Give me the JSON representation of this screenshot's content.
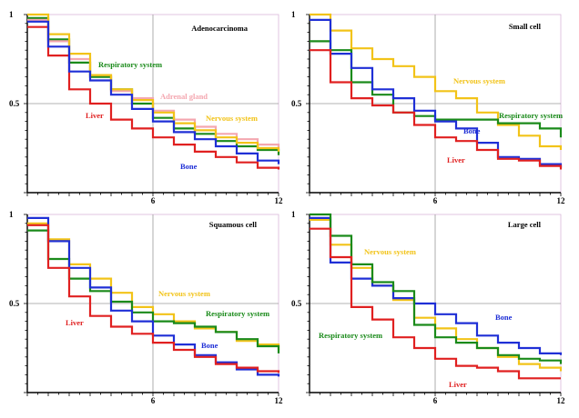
{
  "chart_data": [
    {
      "type": "line",
      "title": "Adenocarcinoma",
      "xlim": [
        0,
        12
      ],
      "ylim": [
        0,
        1
      ],
      "x_ticks": [
        6,
        12
      ],
      "y_ticks": [
        {
          "value": 1,
          "label": "1"
        },
        {
          "value": 0.5,
          "label": "0.5"
        }
      ],
      "series": [
        {
          "name": "Respiratory system",
          "color": "#1a8a1a",
          "x": [
            0,
            1,
            2,
            3,
            4,
            5,
            6,
            7,
            8,
            9,
            10,
            11,
            12
          ],
          "y": [
            0.98,
            0.86,
            0.73,
            0.65,
            0.58,
            0.5,
            0.42,
            0.36,
            0.33,
            0.29,
            0.26,
            0.24,
            0.21
          ]
        },
        {
          "name": "Adrenal gland",
          "color": "#f4a7b0",
          "x": [
            0,
            1,
            2,
            3,
            4,
            5,
            6,
            7,
            8,
            9,
            10,
            11,
            12
          ],
          "y": [
            0.97,
            0.85,
            0.75,
            0.66,
            0.57,
            0.53,
            0.46,
            0.41,
            0.37,
            0.33,
            0.3,
            0.27,
            0.24
          ]
        },
        {
          "name": "Nervous system",
          "color": "#f2c318",
          "x": [
            0,
            1,
            2,
            3,
            4,
            5,
            6,
            7,
            8,
            9,
            10,
            11,
            12
          ],
          "y": [
            1.0,
            0.89,
            0.78,
            0.66,
            0.58,
            0.52,
            0.45,
            0.39,
            0.35,
            0.31,
            0.28,
            0.25,
            0.23
          ]
        },
        {
          "name": "Liver",
          "color": "#e02020",
          "x": [
            0,
            1,
            2,
            3,
            4,
            5,
            6,
            7,
            8,
            9,
            10,
            11,
            12
          ],
          "y": [
            0.93,
            0.77,
            0.58,
            0.5,
            0.41,
            0.36,
            0.31,
            0.27,
            0.23,
            0.2,
            0.17,
            0.14,
            0.13
          ]
        },
        {
          "name": "Bone",
          "color": "#1f2fd6",
          "x": [
            0,
            1,
            2,
            3,
            4,
            5,
            6,
            7,
            8,
            9,
            10,
            11,
            12
          ],
          "y": [
            0.96,
            0.82,
            0.68,
            0.63,
            0.55,
            0.47,
            0.4,
            0.34,
            0.3,
            0.26,
            0.22,
            0.18,
            0.16
          ]
        }
      ]
    },
    {
      "type": "line",
      "title": "Small cell",
      "xlim": [
        0,
        12
      ],
      "ylim": [
        0,
        1
      ],
      "x_ticks": [
        6,
        12
      ],
      "y_ticks": [
        {
          "value": 1,
          "label": "1"
        },
        {
          "value": 0.5,
          "label": "0.5"
        }
      ],
      "series": [
        {
          "name": "Nervous system",
          "color": "#f2c318",
          "x": [
            0,
            1,
            2,
            3,
            4,
            5,
            6,
            7,
            8,
            9,
            10,
            11,
            12
          ],
          "y": [
            1.0,
            0.91,
            0.81,
            0.75,
            0.71,
            0.65,
            0.57,
            0.53,
            0.45,
            0.38,
            0.32,
            0.26,
            0.24
          ]
        },
        {
          "name": "Respiratory system",
          "color": "#1a8a1a",
          "x": [
            0,
            1,
            2,
            3,
            4,
            5,
            6,
            7,
            8,
            9,
            10,
            11,
            12
          ],
          "y": [
            0.85,
            0.8,
            0.62,
            0.55,
            0.45,
            0.43,
            0.41,
            0.41,
            0.41,
            0.39,
            0.39,
            0.36,
            0.31
          ]
        },
        {
          "name": "Bone",
          "color": "#1f2fd6",
          "x": [
            0,
            1,
            2,
            3,
            4,
            5,
            6,
            7,
            8,
            9,
            10,
            11,
            12
          ],
          "y": [
            0.97,
            0.78,
            0.7,
            0.58,
            0.53,
            0.46,
            0.4,
            0.36,
            0.28,
            0.2,
            0.19,
            0.16,
            0.14
          ]
        },
        {
          "name": "Liver",
          "color": "#e02020",
          "x": [
            0,
            1,
            2,
            3,
            4,
            5,
            6,
            7,
            8,
            9,
            10,
            11,
            12
          ],
          "y": [
            0.8,
            0.62,
            0.53,
            0.49,
            0.45,
            0.38,
            0.31,
            0.29,
            0.24,
            0.19,
            0.18,
            0.15,
            0.13
          ]
        }
      ]
    },
    {
      "type": "line",
      "title": "Squamous cell",
      "xlim": [
        0,
        12
      ],
      "ylim": [
        0,
        1
      ],
      "x_ticks": [
        6,
        12
      ],
      "y_ticks": [
        {
          "value": 1,
          "label": "1"
        },
        {
          "value": 0.5,
          "label": "0.5"
        }
      ],
      "series": [
        {
          "name": "Nervous system",
          "color": "#f2c318",
          "x": [
            0,
            1,
            2,
            3,
            4,
            5,
            6,
            7,
            8,
            9,
            10,
            11,
            12
          ],
          "y": [
            0.95,
            0.86,
            0.72,
            0.64,
            0.56,
            0.48,
            0.44,
            0.4,
            0.36,
            0.34,
            0.29,
            0.27,
            0.24
          ]
        },
        {
          "name": "Respiratory system",
          "color": "#1a8a1a",
          "x": [
            0,
            1,
            2,
            3,
            4,
            5,
            6,
            7,
            8,
            9,
            10,
            11,
            12
          ],
          "y": [
            0.91,
            0.75,
            0.64,
            0.57,
            0.51,
            0.45,
            0.4,
            0.39,
            0.37,
            0.34,
            0.3,
            0.26,
            0.22
          ]
        },
        {
          "name": "Bone",
          "color": "#1f2fd6",
          "x": [
            0,
            1,
            2,
            3,
            4,
            5,
            6,
            7,
            8,
            9,
            10,
            11,
            12
          ],
          "y": [
            0.98,
            0.85,
            0.7,
            0.59,
            0.46,
            0.4,
            0.32,
            0.27,
            0.21,
            0.17,
            0.13,
            0.1,
            0.09
          ]
        },
        {
          "name": "Liver",
          "color": "#e02020",
          "x": [
            0,
            1,
            2,
            3,
            4,
            5,
            6,
            7,
            8,
            9,
            10,
            11,
            12
          ],
          "y": [
            0.94,
            0.7,
            0.54,
            0.43,
            0.37,
            0.33,
            0.28,
            0.24,
            0.2,
            0.16,
            0.14,
            0.12,
            0.11
          ]
        }
      ]
    },
    {
      "type": "line",
      "title": "Large cell",
      "xlim": [
        0,
        12
      ],
      "ylim": [
        0,
        1
      ],
      "x_ticks": [
        6,
        12
      ],
      "y_ticks": [
        {
          "value": 1,
          "label": "1"
        },
        {
          "value": 0.5,
          "label": "0.5"
        }
      ],
      "series": [
        {
          "name": "Nervous system",
          "color": "#f2c318",
          "x": [
            0,
            1,
            2,
            3,
            4,
            5,
            6,
            7,
            8,
            9,
            10,
            11,
            12
          ],
          "y": [
            0.97,
            0.83,
            0.7,
            0.6,
            0.52,
            0.42,
            0.36,
            0.3,
            0.25,
            0.2,
            0.16,
            0.14,
            0.12
          ]
        },
        {
          "name": "Bone",
          "color": "#1f2fd6",
          "x": [
            0,
            1,
            2,
            3,
            4,
            5,
            6,
            7,
            8,
            9,
            10,
            11,
            12
          ],
          "y": [
            0.98,
            0.73,
            0.64,
            0.6,
            0.53,
            0.5,
            0.44,
            0.39,
            0.32,
            0.28,
            0.25,
            0.22,
            0.21
          ]
        },
        {
          "name": "Respiratory system",
          "color": "#1a8a1a",
          "x": [
            0,
            1,
            2,
            3,
            4,
            5,
            6,
            7,
            8,
            9,
            10,
            11,
            12
          ],
          "y": [
            1.0,
            0.88,
            0.72,
            0.62,
            0.57,
            0.38,
            0.31,
            0.28,
            0.25,
            0.21,
            0.19,
            0.18,
            0.16
          ]
        },
        {
          "name": "Liver",
          "color": "#e02020",
          "x": [
            0,
            1,
            2,
            3,
            4,
            5,
            6,
            7,
            8,
            9,
            10,
            11,
            12
          ],
          "y": [
            0.92,
            0.76,
            0.48,
            0.41,
            0.31,
            0.25,
            0.19,
            0.15,
            0.14,
            0.12,
            0.08,
            0.08,
            0.08
          ]
        }
      ]
    }
  ]
}
